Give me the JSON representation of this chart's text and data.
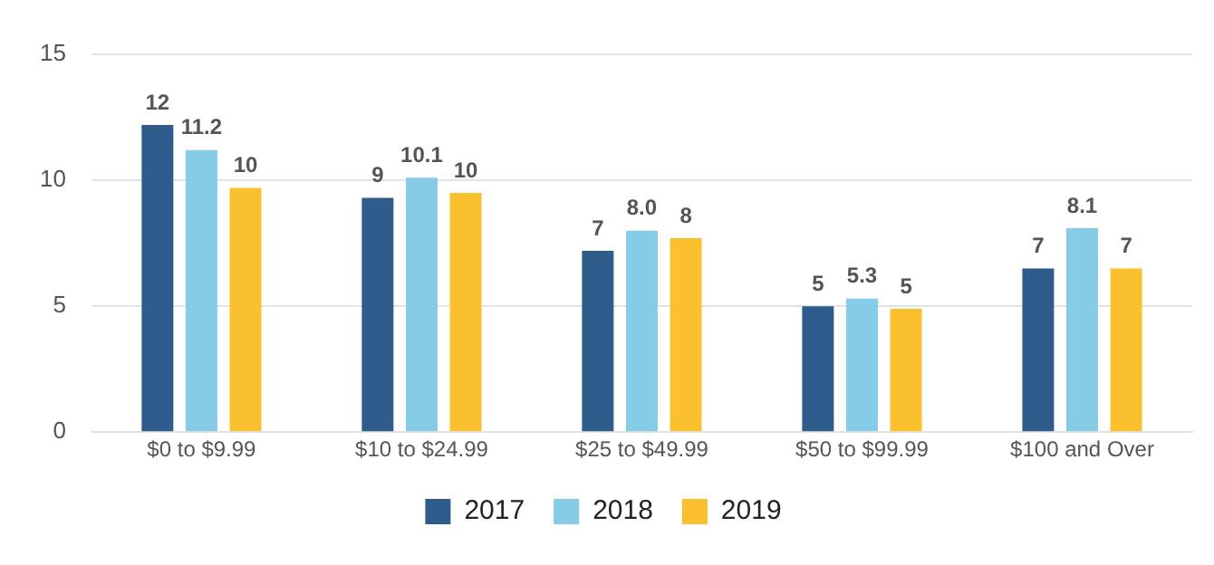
{
  "chart_data": {
    "type": "bar",
    "categories": [
      "$0 to $9.99",
      "$10 to $24.99",
      "$25 to $49.99",
      "$50 to $99.99",
      "$100 and Over"
    ],
    "series": [
      {
        "name": "2017",
        "color": "#2e5d8c",
        "values": [
          12.2,
          9.3,
          7.2,
          5.0,
          6.5
        ],
        "value_labels": [
          "12",
          "9",
          "7",
          "5",
          "7"
        ]
      },
      {
        "name": "2018",
        "color": "#87cce6",
        "values": [
          11.2,
          10.1,
          8.0,
          5.3,
          8.1
        ],
        "value_labels": [
          "11.2",
          "10.1",
          "8.0",
          "5.3",
          "8.1"
        ]
      },
      {
        "name": "2019",
        "color": "#fbc02d",
        "values": [
          9.7,
          9.5,
          7.7,
          4.9,
          6.5
        ],
        "value_labels": [
          "10",
          "10",
          "8",
          "5",
          "7"
        ]
      }
    ],
    "ylim": [
      0,
      15
    ],
    "yticks": [
      0,
      5,
      10,
      15
    ],
    "grid": "y",
    "legend": "bottom"
  }
}
